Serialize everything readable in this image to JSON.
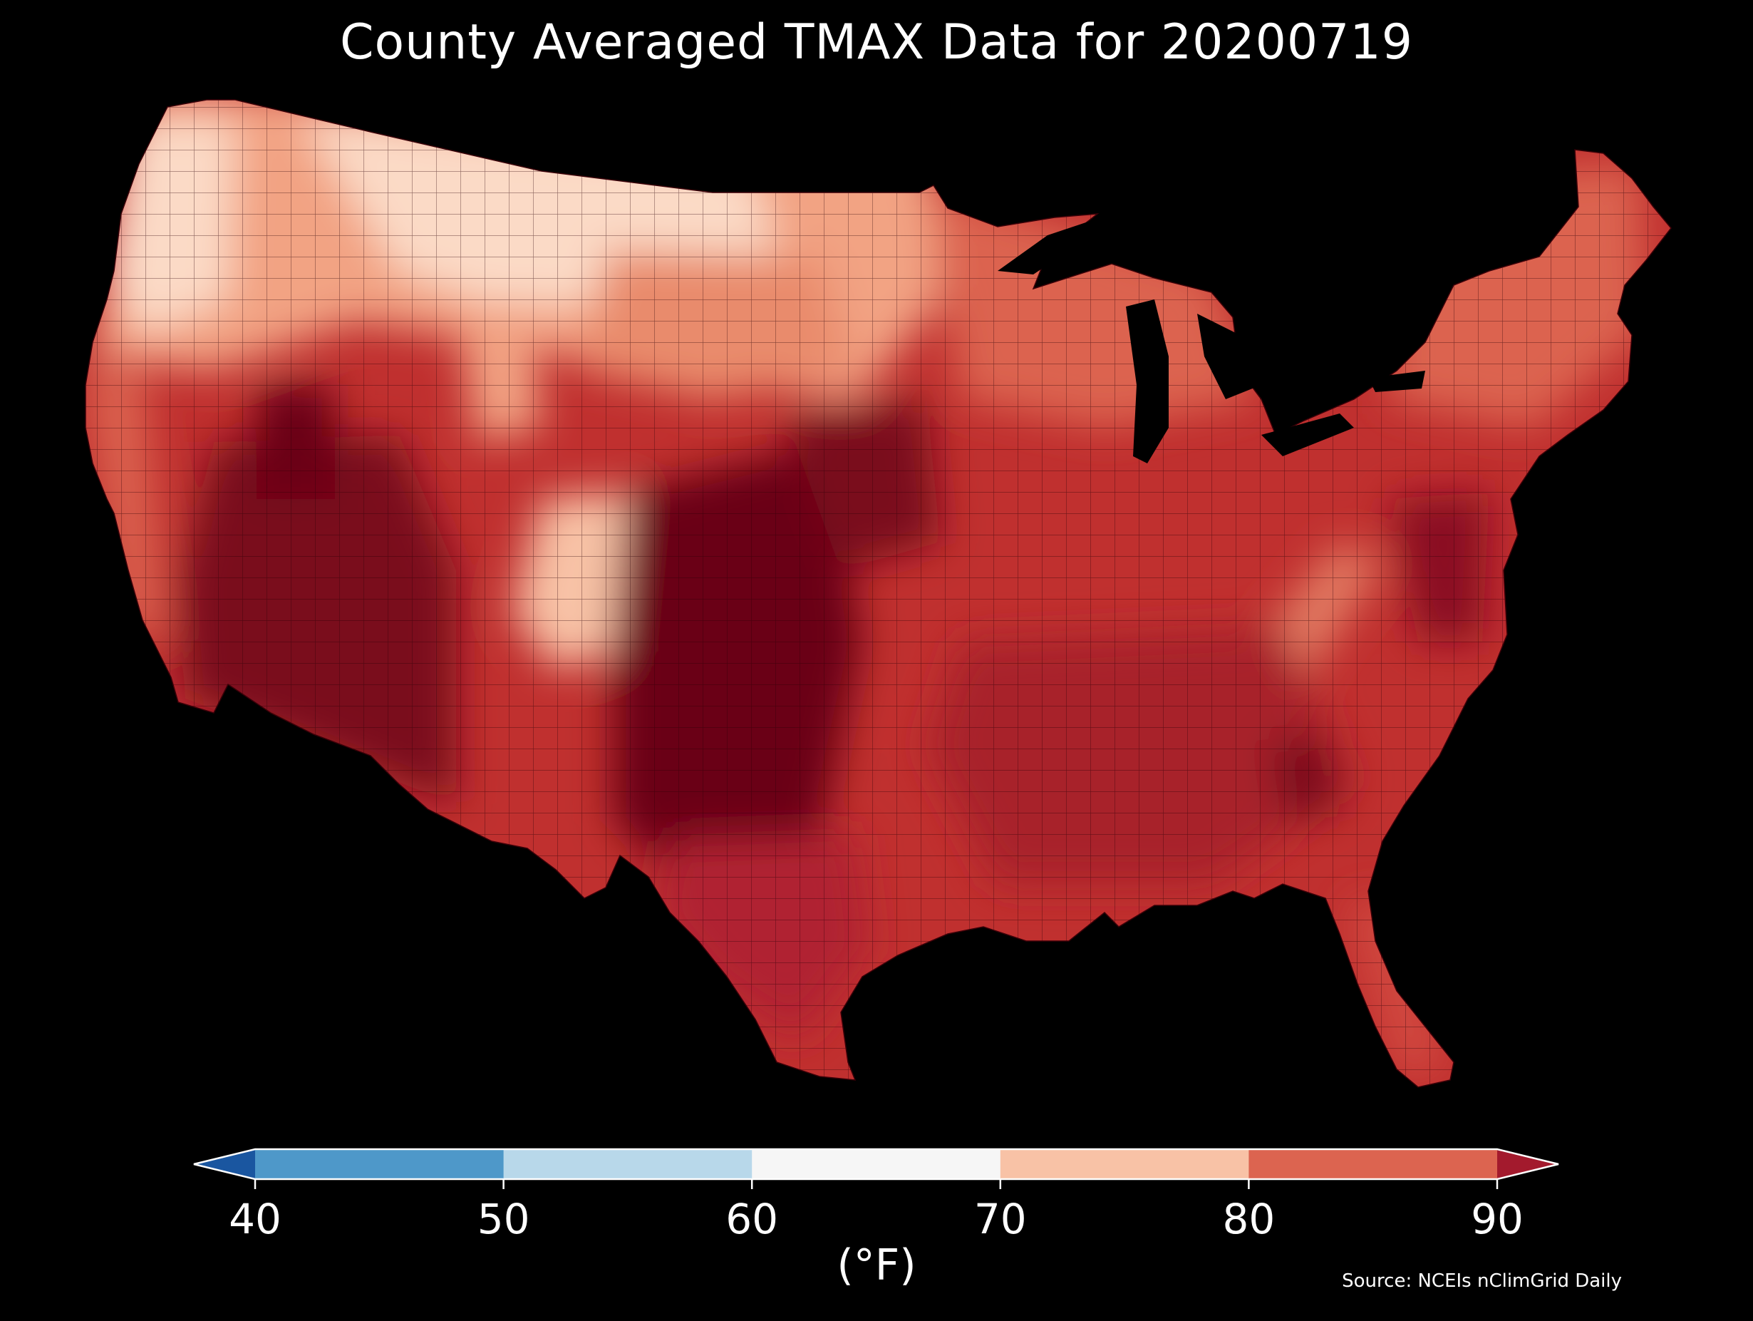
{
  "title": "County Averaged TMAX Data for 20200719",
  "colorbar": {
    "unit_label": "(°F)",
    "ticks": [
      "40",
      "50",
      "60",
      "70",
      "80",
      "90"
    ],
    "bins": [
      {
        "range": "<40",
        "color": "#1a56a0"
      },
      {
        "range": "40-50",
        "color": "#4e98c9"
      },
      {
        "range": "50-60",
        "color": "#b8d8ea"
      },
      {
        "range": "60-70",
        "color": "#f6f6f6"
      },
      {
        "range": "70-80",
        "color": "#f8c2a6"
      },
      {
        "range": "80-90",
        "color": "#dc6450"
      },
      {
        "range": ">90",
        "color": "#a31a2d"
      }
    ],
    "extend": "both"
  },
  "map_region": "contiguous-united-states",
  "palette": {
    "hottest": "#6a0019",
    "hot": "#9a1428",
    "warm": "#c0302f",
    "mild": "#dc6450",
    "cool": "#f2a383",
    "coolest": "#fbdac6",
    "background": "#000000"
  },
  "source": "Source: NCEIs nClimGrid Daily"
}
